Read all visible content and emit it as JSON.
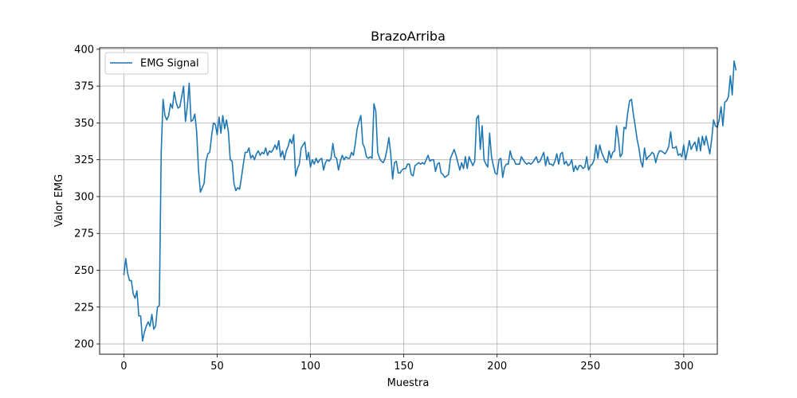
{
  "chart_data": {
    "type": "line",
    "title": "BrazoArriba",
    "xlabel": "Muestra",
    "ylabel": "Valor EMG",
    "xlim": [
      -13,
      318
    ],
    "ylim": [
      193,
      401
    ],
    "xticks": [
      0,
      50,
      100,
      150,
      200,
      250,
      300
    ],
    "yticks": [
      200,
      225,
      250,
      275,
      300,
      325,
      350,
      375,
      400
    ],
    "grid": true,
    "legend": {
      "placement": "upper-left",
      "entries": [
        "EMG Signal"
      ]
    },
    "series": [
      {
        "name": "EMG Signal",
        "color": "#1f77b4",
        "x_start": 0,
        "values": [
          247,
          258,
          248,
          243,
          243,
          234,
          231,
          236,
          219,
          219,
          202,
          208,
          212,
          215,
          212,
          220,
          210,
          212,
          225,
          226,
          330,
          366,
          355,
          352,
          355,
          363,
          360,
          371,
          364,
          360,
          361,
          368,
          375,
          351,
          361,
          377,
          351,
          352,
          356,
          344,
          318,
          303,
          306,
          309,
          324,
          329,
          330,
          341,
          350,
          349,
          342,
          354,
          343,
          355,
          346,
          352,
          344,
          325,
          324,
          309,
          304,
          306,
          305,
          313,
          322,
          330,
          330,
          333,
          326,
          328,
          325,
          329,
          331,
          328,
          330,
          329,
          333,
          328,
          331,
          330,
          332,
          335,
          332,
          338,
          327,
          331,
          325,
          331,
          334,
          339,
          336,
          342,
          314,
          319,
          322,
          333,
          335,
          337,
          325,
          330,
          320,
          325,
          322,
          326,
          323,
          325,
          326,
          318,
          323,
          325,
          324,
          326,
          336,
          327,
          326,
          318,
          324,
          328,
          325,
          327,
          326,
          326,
          330,
          328,
          336,
          346,
          351,
          355,
          336,
          333,
          327,
          326,
          327,
          326,
          363,
          358,
          330,
          326,
          324,
          323,
          326,
          332,
          340,
          329,
          312,
          323,
          324,
          316,
          316,
          318,
          319,
          319,
          322,
          322,
          315,
          314,
          321,
          322,
          323,
          322,
          323,
          322,
          325,
          328,
          324,
          325,
          325,
          317,
          322,
          323,
          316,
          315,
          313,
          314,
          315,
          326,
          329,
          332,
          328,
          323,
          318,
          323,
          319,
          327,
          319,
          327,
          324,
          321,
          324,
          353,
          355,
          332,
          348,
          325,
          322,
          320,
          343,
          327,
          321,
          316,
          315,
          325,
          326,
          313,
          320,
          322,
          322,
          331,
          326,
          325,
          322,
          322,
          322,
          327,
          325,
          323,
          322,
          323,
          322,
          323,
          325,
          327,
          323,
          324,
          327,
          330,
          321,
          327,
          322,
          322,
          321,
          324,
          329,
          322,
          329,
          330,
          322,
          324,
          321,
          322,
          325,
          317,
          321,
          318,
          321,
          321,
          319,
          320,
          327,
          318,
          321,
          322,
          325,
          335,
          326,
          335,
          330,
          327,
          324,
          323,
          331,
          326,
          330,
          331,
          348,
          339,
          327,
          329,
          347,
          346,
          357,
          365,
          366,
          356,
          348,
          339,
          333,
          324,
          320,
          333,
          325,
          327,
          328,
          330,
          329,
          323,
          328,
          331,
          331,
          330,
          329,
          331,
          334,
          344,
          333,
          333,
          334,
          328,
          329,
          327,
          335,
          325,
          331,
          338,
          332,
          335,
          337,
          331,
          340,
          331,
          341,
          335,
          341,
          335,
          329,
          339,
          352,
          348,
          347,
          352,
          361,
          348,
          364,
          365,
          368,
          382,
          369,
          392,
          386
        ]
      }
    ]
  }
}
